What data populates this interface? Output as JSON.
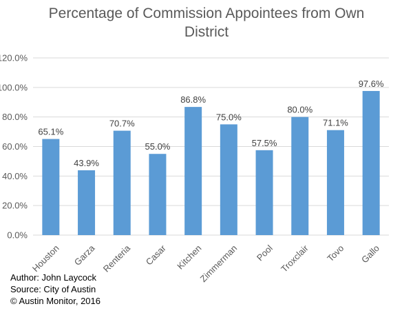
{
  "chart_data": {
    "type": "bar",
    "title_lines": [
      "Percentage of Commission Appointees from Own",
      "District"
    ],
    "categories": [
      "Houston",
      "Garza",
      "Renteria",
      "Casar",
      "Kitchen",
      "Zimmerman",
      "Pool",
      "Troxclair",
      "Tovo",
      "Gallo"
    ],
    "values": [
      65.1,
      43.9,
      70.7,
      55.0,
      86.8,
      75.0,
      57.5,
      80.0,
      71.1,
      97.6
    ],
    "data_labels": [
      "65.1%",
      "43.9%",
      "70.7%",
      "55.0%",
      "86.8%",
      "75.0%",
      "57.5%",
      "80.0%",
      "71.1%",
      "97.6%"
    ],
    "y_ticks": [
      0,
      20,
      40,
      60,
      80,
      100,
      120
    ],
    "y_tick_labels": [
      "0.0%",
      "20.0%",
      "40.0%",
      "60.0%",
      "80.0%",
      "100.0%",
      "120.0%"
    ],
    "ylim": [
      0,
      120
    ],
    "xlabel": "",
    "ylabel": "",
    "grid": true,
    "bar_color": "#5B9BD5",
    "grid_color": "#D9D9D9",
    "legend": "none"
  },
  "credits": {
    "author": "Author: John Laycock",
    "source": "Source: City of Austin",
    "copyright": "© Austin Monitor, 2016"
  }
}
